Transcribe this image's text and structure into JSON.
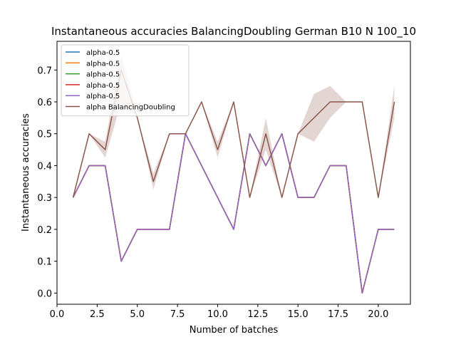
{
  "chart_data": {
    "type": "line",
    "title": "Instantaneous accuracies BalancingDoubling German B10 N 100_10",
    "xlabel": "Number of batches",
    "ylabel": "Instantaneous accuracies",
    "xlim": [
      0,
      22
    ],
    "ylim": [
      -0.035,
      0.79
    ],
    "xticks": [
      0.0,
      2.5,
      5.0,
      7.5,
      10.0,
      12.5,
      15.0,
      17.5,
      20.0
    ],
    "xtick_labels": [
      "0.0",
      "2.5",
      "5.0",
      "7.5",
      "10.0",
      "12.5",
      "15.0",
      "17.5",
      "20.0"
    ],
    "yticks": [
      0.0,
      0.1,
      0.2,
      0.3,
      0.4,
      0.5,
      0.6,
      0.7
    ],
    "ytick_labels": [
      "0.0",
      "0.1",
      "0.2",
      "0.3",
      "0.4",
      "0.5",
      "0.6",
      "0.7"
    ],
    "legend_position": "top-left",
    "grid": false,
    "x": [
      1,
      2,
      3,
      4,
      5,
      6,
      7,
      8,
      9,
      10,
      11,
      12,
      13,
      14,
      15,
      16,
      17,
      18,
      19,
      20,
      21
    ],
    "series": [
      {
        "name": "alpha-0.5",
        "color": "#1f77b4",
        "values": [
          0.3,
          0.4,
          0.4,
          0.1,
          0.2,
          0.2,
          0.2,
          0.5,
          0.4,
          0.3,
          0.2,
          0.5,
          0.4,
          0.5,
          0.3,
          0.3,
          0.4,
          0.4,
          0.0,
          0.2,
          0.2
        ]
      },
      {
        "name": "alpha-0.5",
        "color": "#ff7f0e",
        "values": [
          0.3,
          0.4,
          0.4,
          0.1,
          0.2,
          0.2,
          0.2,
          0.5,
          0.4,
          0.3,
          0.2,
          0.5,
          0.4,
          0.5,
          0.3,
          0.3,
          0.4,
          0.4,
          0.0,
          0.2,
          0.2
        ]
      },
      {
        "name": "alpha-0.5",
        "color": "#2ca02c",
        "values": [
          0.3,
          0.4,
          0.4,
          0.1,
          0.2,
          0.2,
          0.2,
          0.5,
          0.4,
          0.3,
          0.2,
          0.5,
          0.4,
          0.5,
          0.3,
          0.3,
          0.4,
          0.4,
          0.0,
          0.2,
          0.2
        ]
      },
      {
        "name": "alpha-0.5",
        "color": "#d62728",
        "values": [
          0.3,
          0.4,
          0.4,
          0.1,
          0.2,
          0.2,
          0.2,
          0.5,
          0.4,
          0.3,
          0.2,
          0.5,
          0.4,
          0.5,
          0.3,
          0.3,
          0.4,
          0.4,
          0.0,
          0.2,
          0.2
        ]
      },
      {
        "name": "alpha-0.5",
        "color": "#9467bd",
        "values": [
          0.3,
          0.4,
          0.4,
          0.1,
          0.2,
          0.2,
          0.2,
          0.5,
          0.4,
          0.3,
          0.2,
          0.5,
          0.4,
          0.5,
          0.3,
          0.3,
          0.4,
          0.4,
          0.0,
          0.2,
          0.2
        ]
      },
      {
        "name": "alpha BalancingDoubling",
        "color": "#8c564b",
        "values": [
          0.3,
          0.5,
          0.45,
          0.7,
          0.55,
          0.35,
          0.5,
          0.5,
          0.6,
          0.45,
          0.6,
          0.3,
          0.5,
          0.3,
          0.5,
          0.55,
          0.6,
          0.6,
          0.6,
          0.3,
          0.6
        ],
        "band_lower": [
          0.3,
          0.5,
          0.425,
          0.6,
          0.55,
          0.325,
          0.5,
          0.5,
          0.6,
          0.425,
          0.6,
          0.3,
          0.45,
          0.3,
          0.5,
          0.475,
          0.55,
          0.6,
          0.6,
          0.3,
          0.55
        ],
        "band_upper": [
          0.3,
          0.5,
          0.475,
          0.75,
          0.55,
          0.375,
          0.5,
          0.5,
          0.6,
          0.475,
          0.6,
          0.3,
          0.55,
          0.3,
          0.5,
          0.625,
          0.65,
          0.6,
          0.6,
          0.3,
          0.65
        ]
      }
    ]
  }
}
